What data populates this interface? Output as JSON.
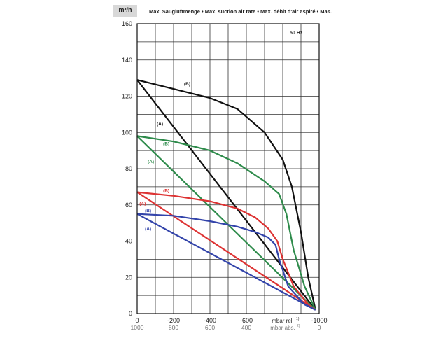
{
  "header": {
    "unit": "m³/h",
    "title": "Max. Saugluftmenge • Max. suction air rate • Max. débit d'air aspiré • Mas.",
    "frequency": "50 Hz"
  },
  "chart_data": {
    "type": "line",
    "title": "Max. Saugluftmenge • Max. suction air rate • Max. débit d'air aspiré • Mas.",
    "ylabel": "m³/h",
    "xlabel_rel": "mbar rel.",
    "xlabel_abs": "mbar abs.",
    "xlabel_rel_sup": "1)",
    "xlabel_abs_sup": "2)",
    "xlim": [
      0,
      -1000
    ],
    "ylim": [
      0,
      160
    ],
    "grid": true,
    "x_ticks_rel": [
      "0",
      "-200",
      "-400",
      "-600",
      "-1000"
    ],
    "x_ticks_abs": [
      "1000",
      "800",
      "600",
      "400",
      "0"
    ],
    "x_tick_values": [
      0,
      -200,
      -400,
      -600,
      -1000
    ],
    "y_ticks": [
      "0",
      "20",
      "40",
      "60",
      "80",
      "100",
      "120",
      "140",
      "160"
    ],
    "annotation": "50 Hz",
    "series": [
      {
        "name": "(B)",
        "color": "#111111",
        "label_at": [
          -275,
          126
        ],
        "points": [
          [
            0,
            129
          ],
          [
            -200,
            124
          ],
          [
            -400,
            119
          ],
          [
            -550,
            113
          ],
          [
            -700,
            100
          ],
          [
            -800,
            85
          ],
          [
            -850,
            70
          ],
          [
            -900,
            45
          ],
          [
            -940,
            20
          ],
          [
            -980,
            2
          ]
        ]
      },
      {
        "name": "(A)",
        "color": "#111111",
        "label_at": [
          -125,
          104
        ],
        "points": [
          [
            0,
            129
          ],
          [
            -980,
            2
          ]
        ]
      },
      {
        "name": "(B)",
        "color": "#2e8b4b",
        "label_at": [
          -160,
          93
        ],
        "points": [
          [
            0,
            98
          ],
          [
            -200,
            95
          ],
          [
            -400,
            90
          ],
          [
            -550,
            83
          ],
          [
            -700,
            73
          ],
          [
            -780,
            66
          ],
          [
            -820,
            55
          ],
          [
            -860,
            35
          ],
          [
            -920,
            15
          ],
          [
            -980,
            2
          ]
        ]
      },
      {
        "name": "(A)",
        "color": "#2e8b4b",
        "label_at": [
          -75,
          83
        ],
        "points": [
          [
            0,
            98
          ],
          [
            -980,
            2
          ]
        ]
      },
      {
        "name": "(B)",
        "color": "#dd3333",
        "label_at": [
          -160,
          67
        ],
        "points": [
          [
            0,
            67
          ],
          [
            -200,
            65
          ],
          [
            -400,
            62
          ],
          [
            -550,
            58
          ],
          [
            -650,
            53
          ],
          [
            -720,
            47
          ],
          [
            -770,
            40
          ],
          [
            -800,
            30
          ],
          [
            -860,
            15
          ],
          [
            -940,
            5
          ],
          [
            -980,
            2
          ]
        ]
      },
      {
        "name": "(A)",
        "color": "#dd3333",
        "label_at": [
          -30,
          60
        ],
        "points": [
          [
            0,
            67
          ],
          [
            -980,
            2
          ]
        ]
      },
      {
        "name": "(B)",
        "color": "#3344aa",
        "label_at": [
          -60,
          56
        ],
        "points": [
          [
            0,
            55
          ],
          [
            -200,
            54
          ],
          [
            -400,
            51
          ],
          [
            -550,
            48
          ],
          [
            -650,
            45
          ],
          [
            -720,
            42
          ],
          [
            -760,
            38
          ],
          [
            -780,
            30
          ],
          [
            -830,
            15
          ],
          [
            -920,
            5
          ],
          [
            -980,
            2
          ]
        ]
      },
      {
        "name": "(A)",
        "color": "#3344aa",
        "label_at": [
          -60,
          46
        ],
        "points": [
          [
            0,
            55
          ],
          [
            -980,
            2
          ]
        ]
      }
    ]
  }
}
